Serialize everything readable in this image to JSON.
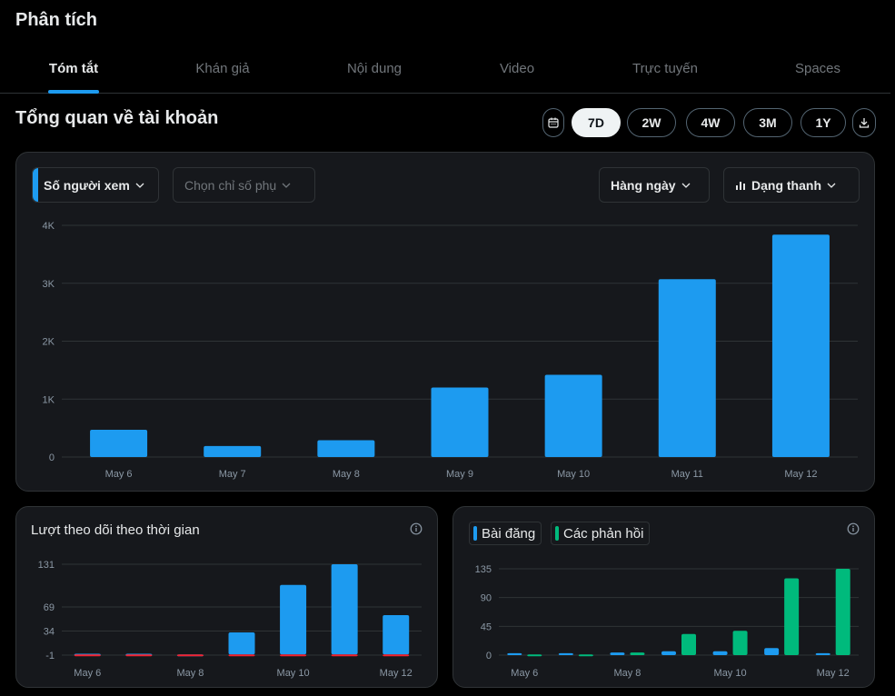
{
  "page": {
    "title": "Phân tích"
  },
  "tabs": [
    {
      "label": "Tóm tắt",
      "active": true
    },
    {
      "label": "Khán giả",
      "active": false
    },
    {
      "label": "Nội dung",
      "active": false
    },
    {
      "label": "Video",
      "active": false
    },
    {
      "label": "Trực tuyến",
      "active": false
    },
    {
      "label": "Spaces",
      "active": false
    }
  ],
  "overview": {
    "title": "Tổng quan về tài khoản",
    "ranges": [
      {
        "label": "7D",
        "active": true
      },
      {
        "label": "2W",
        "active": false
      },
      {
        "label": "4W",
        "active": false
      },
      {
        "label": "3M",
        "active": false
      },
      {
        "label": "1Y",
        "active": false
      }
    ],
    "metric_primary": "Số người xem",
    "metric_secondary_placeholder": "Chọn chỉ số phụ",
    "granularity": "Hàng ngày",
    "chart_style": "Dạng thanh"
  },
  "followers_card": {
    "title": "Lượt theo dõi theo thời gian"
  },
  "posts_card": {
    "legend": [
      "Bài đăng",
      "Các phản hồi"
    ]
  },
  "colors": {
    "accent": "#1d9bf0",
    "green": "#00ba7c",
    "red": "#f4212e",
    "card": "#16181c",
    "border": "#2f3336",
    "muted": "#71767b"
  },
  "chart_data": [
    {
      "type": "bar",
      "categories": [
        "May 6",
        "May 7",
        "May 8",
        "May 9",
        "May 10",
        "May 11",
        "May 12"
      ],
      "values": [
        470,
        190,
        290,
        1200,
        1420,
        3070,
        3840
      ],
      "yticks": [
        "0",
        "1K",
        "2K",
        "3K",
        "4K"
      ],
      "ylim": [
        0,
        4000
      ],
      "grid": true
    },
    {
      "type": "bar",
      "categories": [
        "May 6",
        "May 7",
        "May 8",
        "May 9",
        "May 10",
        "May 11",
        "May 12"
      ],
      "xticks": [
        "May 6",
        "May 8",
        "May 10",
        "May 12"
      ],
      "series": [
        {
          "values": [
            1,
            1,
            0,
            32,
            101,
            131,
            57
          ],
          "color": "#1d9bf0"
        },
        {
          "values": [
            0,
            -1,
            0,
            -2,
            0,
            0,
            0
          ],
          "color": "#f4212e"
        }
      ],
      "yticks": [
        "-1",
        "34",
        "69",
        "131"
      ],
      "ylim": [
        -1,
        131
      ],
      "grid": true
    },
    {
      "type": "bar",
      "categories": [
        "May 6",
        "May 7",
        "May 8",
        "May 9",
        "May 10",
        "May 11",
        "May 12"
      ],
      "xticks": [
        "May 6",
        "May 8",
        "May 10",
        "May 12"
      ],
      "series": [
        {
          "name": "Bài đăng",
          "values": [
            3,
            3,
            4,
            6,
            6,
            11,
            3
          ],
          "color": "#1d9bf0"
        },
        {
          "name": "Các phản hồi",
          "values": [
            1,
            1,
            4,
            33,
            38,
            120,
            135
          ],
          "color": "#00ba7c"
        }
      ],
      "yticks": [
        "0",
        "45",
        "90",
        "135"
      ],
      "ylim": [
        0,
        135
      ],
      "grid": true
    }
  ]
}
